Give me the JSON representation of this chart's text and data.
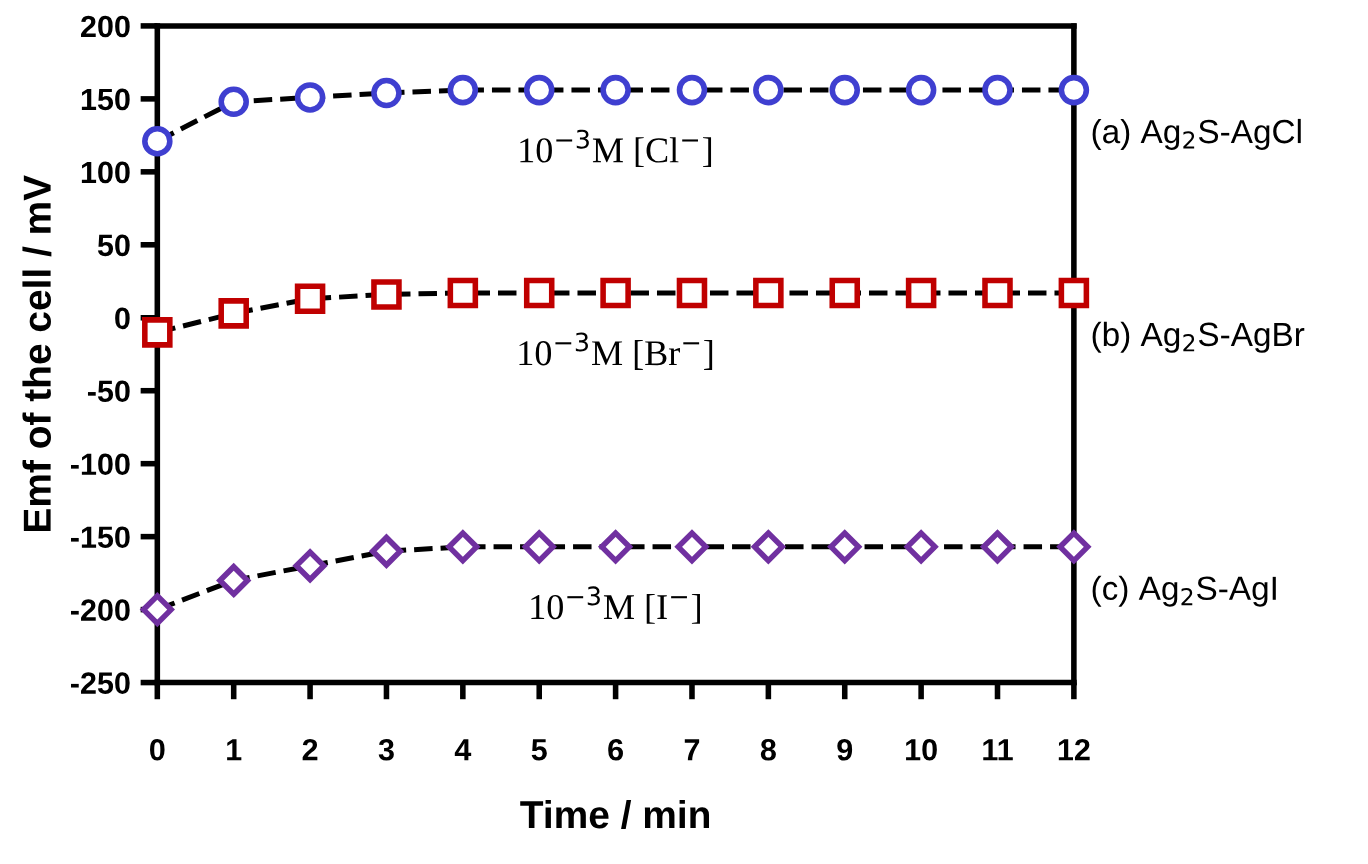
{
  "chart_data": {
    "type": "line",
    "xlabel": "Time / min",
    "ylabel": "Emf of the cell / mV",
    "x": [
      0,
      1,
      2,
      3,
      4,
      5,
      6,
      7,
      8,
      9,
      10,
      11,
      12
    ],
    "series": [
      {
        "name": "(a) Ag$_{2}$S-AgCl",
        "color": "#3f3fd0",
        "marker": "circle",
        "values": [
          121,
          148,
          151,
          154,
          156,
          156,
          156,
          156,
          156,
          156,
          156,
          156,
          156
        ]
      },
      {
        "name": "(b) Ag$_{2}$S-AgBr",
        "color": "#c00000",
        "marker": "square",
        "values": [
          -10,
          3,
          13,
          16,
          17,
          17,
          17,
          17,
          17,
          17,
          17,
          17,
          17
        ]
      },
      {
        "name": "(c) Ag$_{2}$S-AgI",
        "color": "#7030a0",
        "marker": "diamond",
        "values": [
          -200,
          -180,
          -170,
          -160,
          -157,
          -157,
          -157,
          -157,
          -157,
          -157,
          -157,
          -157,
          -157
        ]
      }
    ],
    "annotations": [
      "10$^{−3}$M [Cl$^{−}$]",
      "10$^{−3}$M [Br$^{−}$]",
      "10$^{−3}$M [I$^{−}$]"
    ],
    "line_style": "dashed",
    "xlim": [
      0,
      12
    ],
    "xticks": [
      0,
      1,
      2,
      3,
      4,
      5,
      6,
      7,
      8,
      9,
      10,
      11,
      12
    ],
    "ylim": [
      -250,
      200
    ],
    "yticks": [
      -250,
      -200,
      -150,
      -100,
      -50,
      0,
      50,
      100,
      150,
      200
    ],
    "grid": false,
    "legend": false
  }
}
